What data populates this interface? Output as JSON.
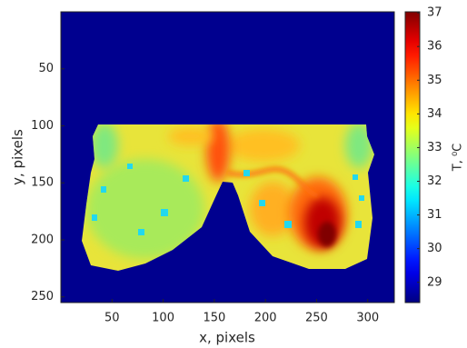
{
  "chart_data": {
    "type": "heatmap",
    "xlabel": "x, pixels",
    "ylabel": "y, pixels",
    "xlim": [
      0,
      326
    ],
    "ylim": [
      0,
      255
    ],
    "invert_y": true,
    "xticks": [
      50,
      100,
      150,
      200,
      250,
      300
    ],
    "yticks": [
      50,
      100,
      150,
      200,
      250
    ],
    "colorbar": {
      "label": "T, ⁰C",
      "lim": [
        28.4,
        37.03
      ],
      "ticks": [
        29,
        30,
        31,
        32,
        33,
        34,
        35,
        36,
        37
      ],
      "colormap": "jet"
    }
  }
}
